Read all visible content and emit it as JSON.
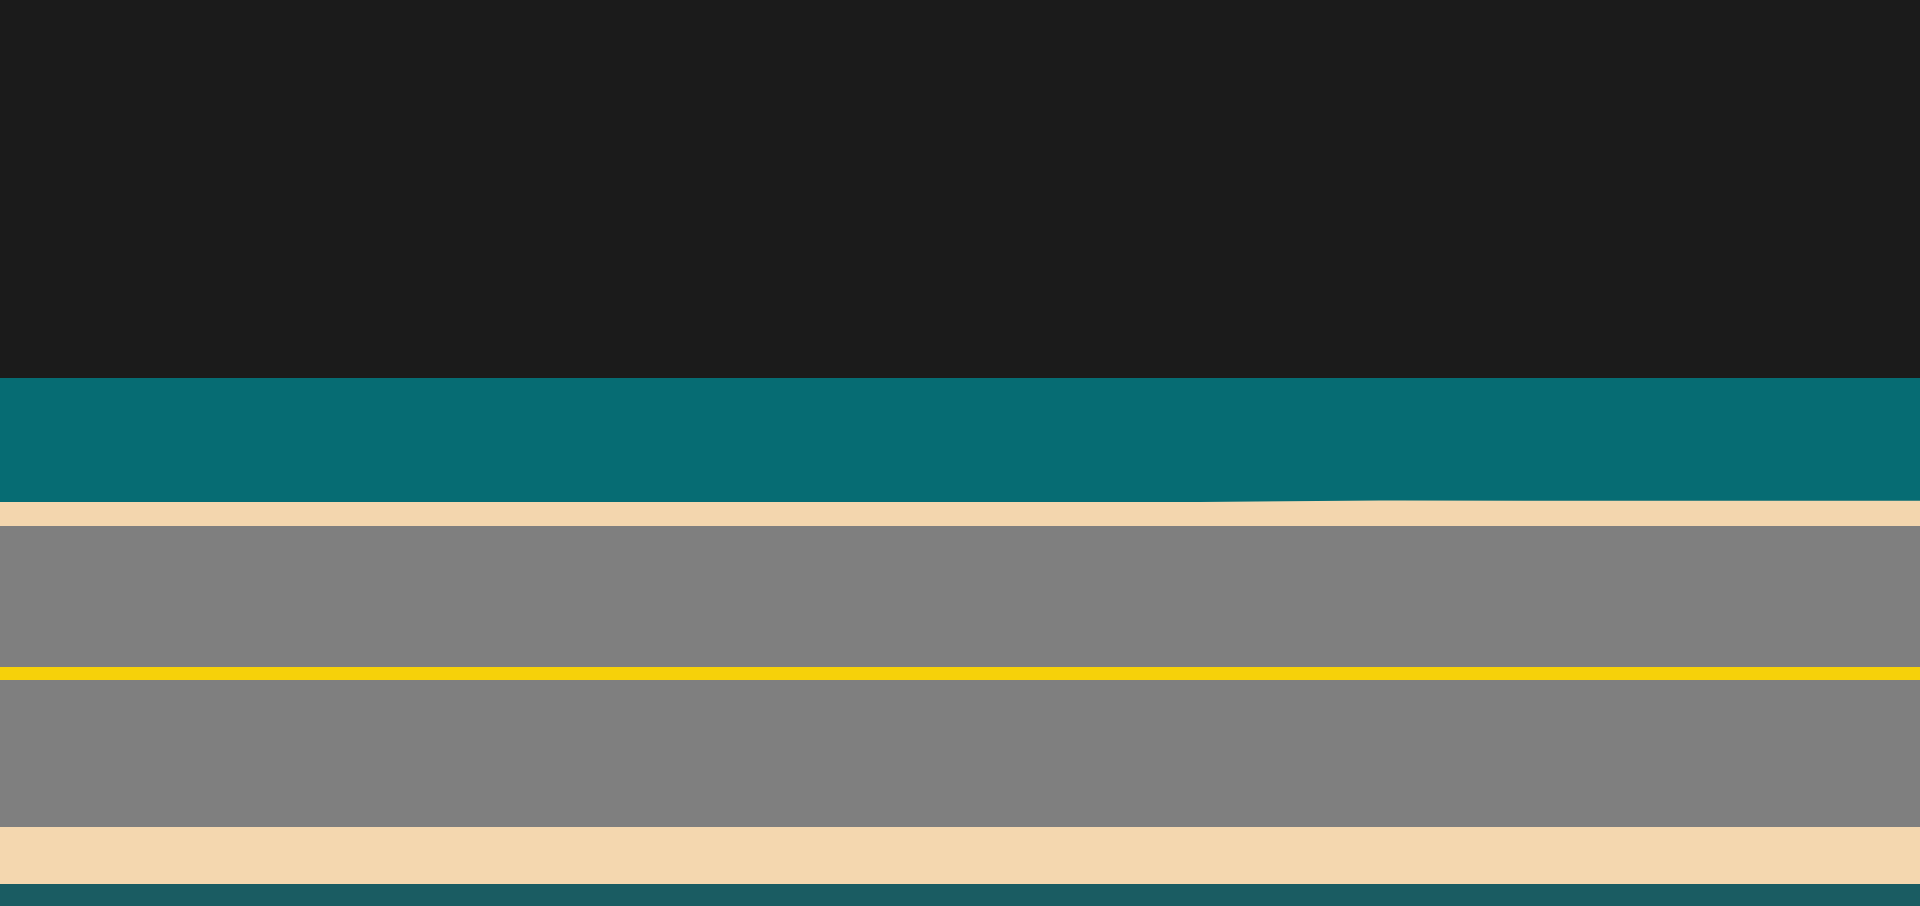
{
  "scene": {
    "colors": {
      "sky": "#1b1b1b",
      "water_top": "#066c73",
      "sand_top": "#f3d6ae",
      "road": "#7f7f7f",
      "center_line": "#f6d10a",
      "sand_bottom": "#f4d7af",
      "water_bottom": "#1a5c62"
    }
  }
}
